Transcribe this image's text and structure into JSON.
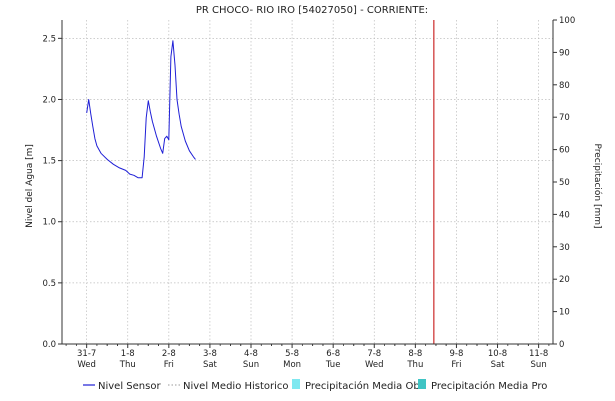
{
  "chart_data": {
    "type": "line",
    "title": "PR CHOCO- RIO IRO [54027050] - CORRIENTE:",
    "ylabel": "Nivel del Agua [m]",
    "y2label": "Precipitación [mm]",
    "ylim": [
      0,
      2.65
    ],
    "y2lim": [
      0,
      100
    ],
    "xlim": [
      -0.6,
      11.35
    ],
    "y_ticks": [
      "0.0",
      "0.5",
      "1.0",
      "1.5",
      "2.0",
      "2.5"
    ],
    "y_tick_values": [
      0,
      0.5,
      1.0,
      1.5,
      2.0,
      2.5
    ],
    "y2_ticks": [
      "0",
      "10",
      "20",
      "30",
      "40",
      "50",
      "60",
      "70",
      "80",
      "90",
      "100"
    ],
    "y2_tick_values": [
      0,
      10,
      20,
      30,
      40,
      50,
      60,
      70,
      80,
      90,
      100
    ],
    "x_ticks": [
      {
        "date": "31-7",
        "day": "Wed"
      },
      {
        "date": "1-8",
        "day": "Thu"
      },
      {
        "date": "2-8",
        "day": "Fri"
      },
      {
        "date": "3-8",
        "day": "Sat"
      },
      {
        "date": "4-8",
        "day": "Sun"
      },
      {
        "date": "5-8",
        "day": "Mon"
      },
      {
        "date": "6-8",
        "day": "Tue"
      },
      {
        "date": "7-8",
        "day": "Wed"
      },
      {
        "date": "8-8",
        "day": "Thu"
      },
      {
        "date": "9-8",
        "day": "Fri"
      },
      {
        "date": "10-8",
        "day": "Sat"
      },
      {
        "date": "11-8",
        "day": "Sun"
      }
    ],
    "x_tick_values": [
      0,
      1,
      2,
      3,
      4,
      5,
      6,
      7,
      8,
      9,
      10,
      11
    ],
    "grid": true,
    "legend_position": "bottom",
    "legend": [
      {
        "name": "Nivel Sensor",
        "style": "solid",
        "color": "#1f1fd6"
      },
      {
        "name": "Nivel Medio Historico",
        "style": "dotted",
        "color": "#9a9a9a"
      },
      {
        "name": "Precipitación Media Obs",
        "style": "swatch",
        "color": "#7fe8f0"
      },
      {
        "name": "Precipitación Media Pro",
        "style": "swatch",
        "color": "#3fc4c4"
      }
    ],
    "vertical_marker_x": 8.45,
    "vertical_marker_color": "#cc2a2a",
    "series": [
      {
        "name": "Nivel Sensor",
        "color": "#1f1fd6",
        "points": [
          [
            0.0,
            1.89
          ],
          [
            0.05,
            2.0
          ],
          [
            0.1,
            1.88
          ],
          [
            0.15,
            1.78
          ],
          [
            0.2,
            1.68
          ],
          [
            0.25,
            1.62
          ],
          [
            0.35,
            1.56
          ],
          [
            0.5,
            1.51
          ],
          [
            0.65,
            1.47
          ],
          [
            0.8,
            1.44
          ],
          [
            0.95,
            1.42
          ],
          [
            1.05,
            1.39
          ],
          [
            1.15,
            1.38
          ],
          [
            1.25,
            1.36
          ],
          [
            1.35,
            1.36
          ],
          [
            1.4,
            1.53
          ],
          [
            1.45,
            1.85
          ],
          [
            1.5,
            1.99
          ],
          [
            1.55,
            1.9
          ],
          [
            1.6,
            1.82
          ],
          [
            1.7,
            1.7
          ],
          [
            1.8,
            1.6
          ],
          [
            1.85,
            1.56
          ],
          [
            1.9,
            1.68
          ],
          [
            1.95,
            1.7
          ],
          [
            2.0,
            1.67
          ],
          [
            2.05,
            2.35
          ],
          [
            2.1,
            2.48
          ],
          [
            2.15,
            2.28
          ],
          [
            2.2,
            2.0
          ],
          [
            2.25,
            1.88
          ],
          [
            2.3,
            1.78
          ],
          [
            2.4,
            1.66
          ],
          [
            2.5,
            1.58
          ],
          [
            2.6,
            1.53
          ],
          [
            2.65,
            1.51
          ]
        ]
      }
    ]
  }
}
